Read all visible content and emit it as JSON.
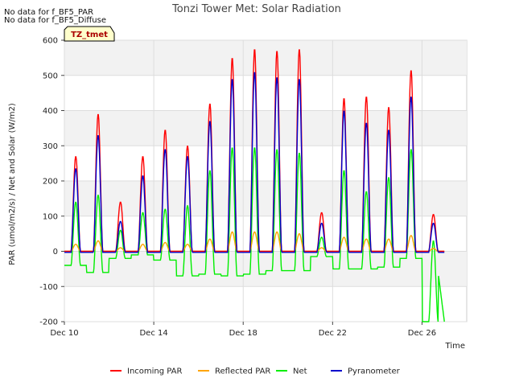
{
  "notes": [
    "No data for f_BF5_PAR",
    "No data for f_BF5_Diffuse"
  ],
  "badge": "TZ_tmet",
  "chart_data": {
    "type": "line",
    "title": "Tonzi Tower Met: Solar Radiation",
    "xlabel": "Time",
    "ylabel": "PAR (umol/m2/s) / Net and Solar (W/m2)",
    "xlim": [
      0,
      18
    ],
    "ylim": [
      -200,
      600
    ],
    "yticks": [
      -200,
      -100,
      0,
      100,
      200,
      300,
      400,
      500,
      600
    ],
    "xticks": [
      {
        "label": "Dec 10",
        "day": 0
      },
      {
        "label": "Dec 14",
        "day": 4
      },
      {
        "label": "Dec 18",
        "day": 8
      },
      {
        "label": "Dec 22",
        "day": 12
      },
      {
        "label": "Dec 26",
        "day": 16
      }
    ],
    "grid": true,
    "legend": "bottom",
    "days": [
      "Dec 10",
      "Dec 11",
      "Dec 12",
      "Dec 13",
      "Dec 14",
      "Dec 15",
      "Dec 16",
      "Dec 17",
      "Dec 18",
      "Dec 19",
      "Dec 20",
      "Dec 21",
      "Dec 22",
      "Dec 23",
      "Dec 24",
      "Dec 25",
      "Dec 26",
      "Dec 27"
    ],
    "series": [
      {
        "name": "Incoming PAR",
        "color": "#ff0000",
        "daily_peak": [
          270,
          390,
          140,
          270,
          345,
          300,
          420,
          550,
          575,
          570,
          575,
          110,
          435,
          440,
          410,
          515,
          105,
          0
        ]
      },
      {
        "name": "Reflected PAR",
        "color": "#ffa500",
        "daily_peak": [
          20,
          30,
          10,
          20,
          25,
          20,
          35,
          55,
          55,
          55,
          50,
          10,
          40,
          35,
          35,
          45,
          8,
          0
        ]
      },
      {
        "name": "Net",
        "color": "#00ee00",
        "daily_peak": [
          140,
          160,
          60,
          110,
          120,
          130,
          230,
          295,
          295,
          290,
          280,
          40,
          230,
          170,
          210,
          290,
          30,
          0
        ],
        "night_level": [
          -40,
          -60,
          -20,
          -10,
          -25,
          -70,
          -65,
          -70,
          -65,
          -55,
          -55,
          -15,
          -50,
          -50,
          -45,
          -20,
          -200,
          0
        ]
      },
      {
        "name": "Pyranometer",
        "color": "#0000cc",
        "daily_peak": [
          235,
          330,
          85,
          215,
          290,
          270,
          370,
          490,
          510,
          495,
          490,
          80,
          400,
          365,
          345,
          440,
          80,
          0
        ]
      }
    ]
  }
}
